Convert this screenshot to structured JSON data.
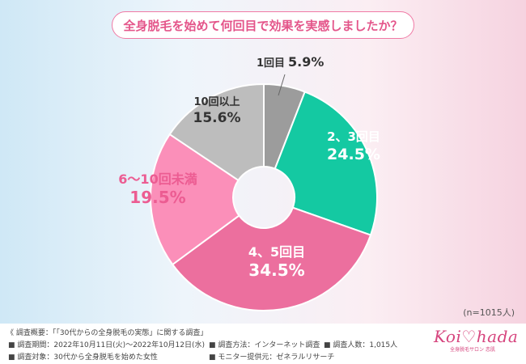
{
  "title": "全身脱毛を始めて何回目で効果を実感しましたか？",
  "sample_note": "(n=1015人)",
  "chart_data": {
    "type": "pie",
    "donut": true,
    "title": "全身脱毛を始めて何回目で効果を実感しましたか？",
    "categories": [
      "1回目",
      "2、3回目",
      "4、5回目",
      "6〜10回未満",
      "10回以上"
    ],
    "values": [
      5.9,
      24.5,
      34.5,
      19.5,
      15.6
    ],
    "value_labels": [
      "5.9%",
      "24.5%",
      "34.5%",
      "19.5%",
      "15.6%"
    ],
    "colors": [
      "#9c9c9c",
      "#14c9a2",
      "#ec6f9e",
      "#fb8fb9",
      "#bdbdbd"
    ],
    "label_colors": [
      "#333333",
      "#ffffff",
      "#ffffff",
      "#ec5c92",
      "#333333"
    ]
  },
  "footer": {
    "survey_overview": "《 調査概要：「「30代からの全身脱毛の実態」に関する調査」",
    "survey_period": "■ 調査期間：2022年10月11日(火)～2022年10月12日(水)",
    "survey_method": "■ 調査方法：インターネット調査",
    "respondents": "■ 調査人数：1,015人",
    "survey_target": "■ 調査対象：30代から全身脱毛を始めた女性",
    "monitor_provider": "■ モニター提供元：ゼネラルリサーチ"
  },
  "brand": {
    "logo_text": "Koi♡hada",
    "tagline": "全身脱毛サロン 恋肌"
  }
}
